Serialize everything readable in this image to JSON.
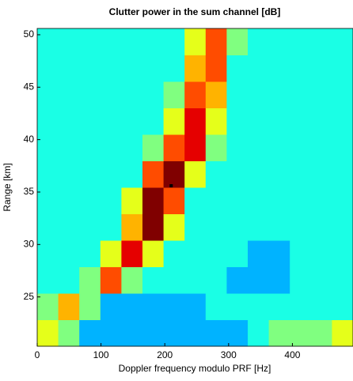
{
  "chart_data": {
    "type": "heatmap",
    "title": "Clutter power in the sum channel [dB]",
    "x_label": "Doppler frequency modulo PRF [Hz]",
    "y_label": "Range [km]",
    "xlim": [
      0,
      495
    ],
    "ylim": [
      20.3,
      50.6
    ],
    "xticks": [
      0,
      100,
      200,
      300,
      400
    ],
    "yticks": [
      25,
      30,
      35,
      40,
      45,
      50
    ],
    "colormap": "jet",
    "clim": [
      0,
      10
    ],
    "xbins": [
      0,
      33,
      66,
      99,
      132,
      165,
      198,
      231,
      264,
      297,
      330,
      363,
      396,
      429,
      462,
      495
    ],
    "ybins": [
      20.3,
      22.825,
      25.35,
      27.875,
      30.4,
      32.925,
      35.45,
      37.975,
      40.5,
      43.025,
      45.55,
      48.075,
      50.6
    ],
    "values": [
      [
        6,
        5,
        3,
        3,
        3,
        3,
        3,
        3,
        3,
        3,
        4,
        5,
        5,
        5,
        6
      ],
      [
        5,
        7,
        5,
        3,
        3,
        3,
        3,
        3,
        4,
        4,
        4,
        4,
        4,
        4,
        4
      ],
      [
        4,
        4,
        5,
        8,
        5,
        4,
        4,
        4,
        4,
        3,
        3,
        3,
        4,
        4,
        4
      ],
      [
        4,
        4,
        4,
        6,
        9,
        6,
        4,
        4,
        4,
        4,
        3,
        3,
        4,
        4,
        4
      ],
      [
        4,
        4,
        4,
        4,
        7,
        10,
        6,
        4,
        4,
        4,
        4,
        4,
        4,
        4,
        4
      ],
      [
        4,
        4,
        4,
        4,
        6,
        10,
        8,
        4,
        4,
        4,
        4,
        4,
        4,
        4,
        4
      ],
      [
        4,
        4,
        4,
        4,
        4,
        8,
        10,
        6,
        4,
        4,
        4,
        4,
        4,
        4,
        4
      ],
      [
        4,
        4,
        4,
        4,
        4,
        5,
        8,
        9,
        5,
        4,
        4,
        4,
        4,
        4,
        4
      ],
      [
        4,
        4,
        4,
        4,
        4,
        4,
        6,
        9,
        6,
        4,
        4,
        4,
        4,
        4,
        4
      ],
      [
        4,
        4,
        4,
        4,
        4,
        4,
        5,
        8,
        7,
        4,
        4,
        4,
        4,
        4,
        4
      ],
      [
        4,
        4,
        4,
        4,
        4,
        4,
        4,
        7,
        8,
        4,
        4,
        4,
        4,
        4,
        4
      ],
      [
        4,
        4,
        4,
        4,
        4,
        4,
        4,
        6,
        8,
        5,
        4,
        4,
        4,
        4,
        4
      ]
    ],
    "marker": {
      "x": 210,
      "y": 35.6,
      "color": "#000000"
    }
  }
}
